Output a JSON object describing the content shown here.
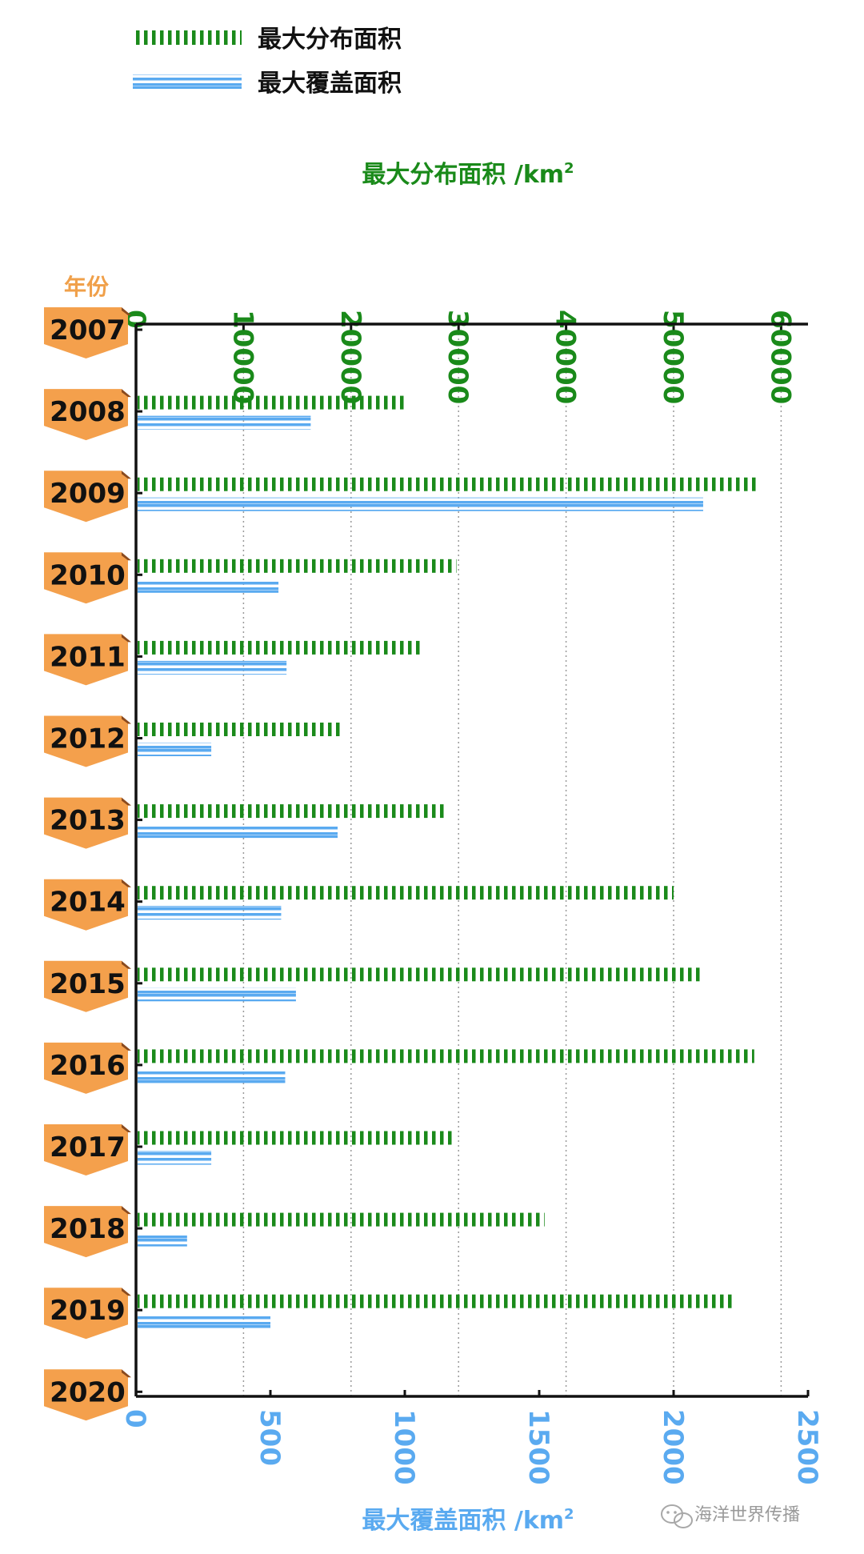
{
  "chart_data": {
    "type": "bar",
    "orientation": "horizontal",
    "categories_title": "年份",
    "categories": [
      "2007",
      "2008",
      "2009",
      "2010",
      "2011",
      "2012",
      "2013",
      "2014",
      "2015",
      "2016",
      "2017",
      "2018",
      "2019",
      "2020"
    ],
    "series": [
      {
        "name": "最大分布面积",
        "axis": "top",
        "color": "#1a8a1a",
        "style": "vertical-hatch",
        "values": [
          null,
          25000,
          58000,
          29800,
          26500,
          19200,
          29000,
          50000,
          52700,
          57500,
          29500,
          38000,
          55700,
          null
        ]
      },
      {
        "name": "最大覆盖面积",
        "axis": "bottom",
        "color": "#5aaaf0",
        "style": "horizontal-stripes",
        "values": [
          null,
          650,
          2110,
          530,
          560,
          280,
          750,
          540,
          595,
          555,
          280,
          190,
          500,
          null
        ]
      }
    ],
    "top_axis": {
      "title": "最大分布面积 /km",
      "unit_superscript": "2",
      "range": [
        0,
        62500
      ],
      "ticks": [
        0,
        10000,
        20000,
        30000,
        40000,
        50000,
        60000
      ],
      "color": "#1a8a1a"
    },
    "bottom_axis": {
      "title": "最大覆盖面积 /km",
      "unit_superscript": "2",
      "range": [
        0,
        2500
      ],
      "ticks": [
        0,
        500,
        1000,
        1500,
        2000,
        2500
      ],
      "color": "#5aaaf0"
    },
    "grid": "vertical-dotted",
    "legend_position": "top-left"
  },
  "colors": {
    "year_tag": "#f4a04c",
    "year_tag_shadow": "#8a4a1e",
    "year_header": "#f0a04a"
  },
  "watermark": {
    "icon": "wechat-icon",
    "text": "海洋世界传播"
  }
}
